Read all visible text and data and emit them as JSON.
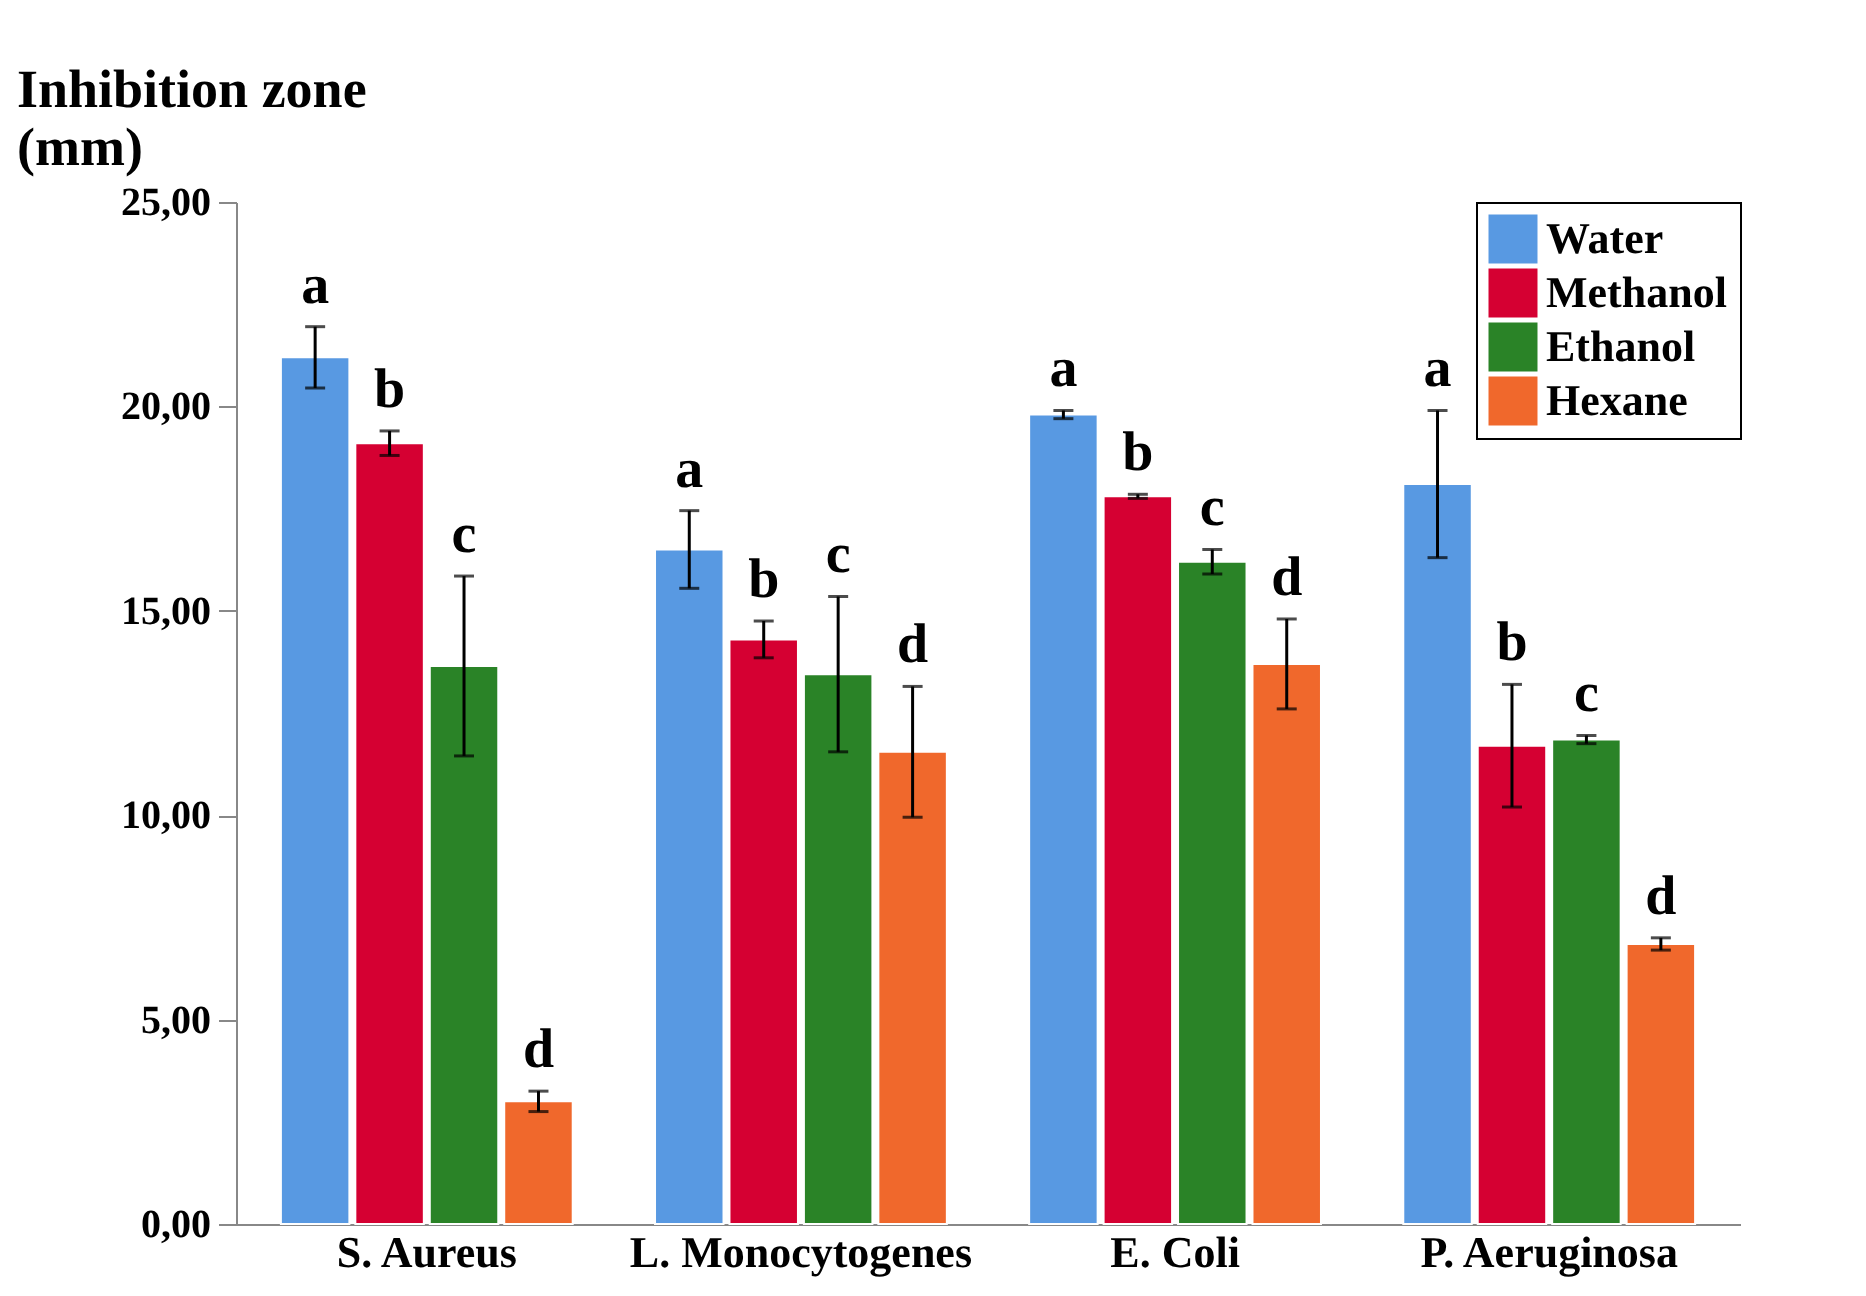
{
  "chart_data": {
    "type": "bar",
    "ylabel": "Inhibition zone (mm)",
    "categories": [
      "S. Aureus",
      "L. Monocytogenes",
      "E. Coli",
      "P. Aeruginosa"
    ],
    "series": [
      {
        "name": "Water",
        "color": "#5899e2",
        "values": [
          21.2,
          16.5,
          19.8,
          18.1
        ],
        "errors": [
          0.75,
          0.95,
          0.1,
          1.8
        ],
        "value_labels": [
          "a",
          "a",
          "a",
          "a"
        ]
      },
      {
        "name": "Methanol",
        "color": "#d50032",
        "values": [
          19.1,
          14.3,
          17.8,
          11.7
        ],
        "errors": [
          0.3,
          0.45,
          0.05,
          1.5
        ],
        "value_labels": [
          "b",
          "b",
          "b",
          "b"
        ]
      },
      {
        "name": "Ethanol",
        "color": "#2a8327",
        "values": [
          13.65,
          13.45,
          16.2,
          11.85
        ],
        "errors": [
          2.2,
          1.9,
          0.3,
          0.1
        ],
        "value_labels": [
          "c",
          "c",
          "c",
          "c"
        ]
      },
      {
        "name": "Hexane",
        "color": "#f0682c",
        "values": [
          3.0,
          11.55,
          13.7,
          6.85
        ],
        "errors": [
          0.25,
          1.6,
          1.1,
          0.15
        ],
        "value_labels": [
          "d",
          "d",
          "d",
          "d"
        ]
      }
    ],
    "ylim": [
      0,
      25
    ],
    "yticks": [
      {
        "value": 0,
        "label": "0,00"
      },
      {
        "value": 5,
        "label": "5,00"
      },
      {
        "value": 10,
        "label": "10,00"
      },
      {
        "value": 15,
        "label": "15,00"
      },
      {
        "value": 20,
        "label": "20,00"
      },
      {
        "value": 25,
        "label": "25,00"
      }
    ],
    "grid": false,
    "legend": "top right"
  }
}
